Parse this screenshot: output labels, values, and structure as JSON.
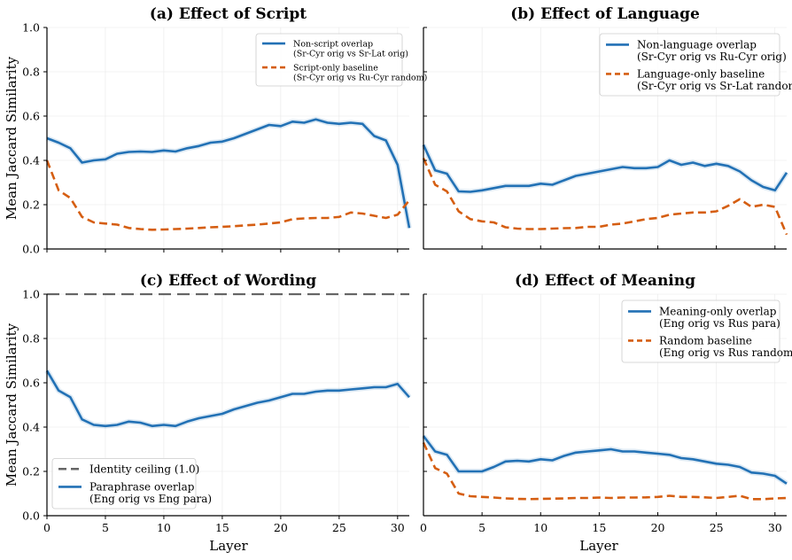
{
  "figure": {
    "shared_ylabel": "Mean Jaccard Similarity",
    "shared_xlabel": "Layer"
  },
  "chart_data": [
    {
      "type": "line",
      "title": "(a)  Effect of Script",
      "xlim": [
        0,
        31
      ],
      "ylim": [
        0,
        1
      ],
      "xticks": [
        0,
        5,
        10,
        15,
        20,
        25,
        30
      ],
      "yticks": [
        0.0,
        0.2,
        0.4,
        0.6,
        0.8,
        1.0
      ],
      "ytick_labels": [
        "0.0",
        "0.2",
        "0.4",
        "0.6",
        "0.8",
        "1.0"
      ],
      "show_xtick_labels": false,
      "show_ytick_labels": true,
      "legend_position": "top-right",
      "legend_font_size": "small",
      "series": [
        {
          "name": "Non-script overlap",
          "name_line2": "(Sr-Cyr orig vs Sr-Lat orig)",
          "color": "#2271b5",
          "style": "solid",
          "x": [
            0,
            1,
            2,
            3,
            4,
            5,
            6,
            7,
            8,
            9,
            10,
            11,
            12,
            13,
            14,
            15,
            16,
            17,
            18,
            19,
            20,
            21,
            22,
            23,
            24,
            25,
            26,
            27,
            28,
            29,
            30,
            31
          ],
          "y": [
            0.5,
            0.48,
            0.455,
            0.39,
            0.4,
            0.405,
            0.43,
            0.438,
            0.44,
            0.438,
            0.445,
            0.44,
            0.455,
            0.465,
            0.48,
            0.485,
            0.5,
            0.52,
            0.54,
            0.56,
            0.555,
            0.575,
            0.57,
            0.585,
            0.57,
            0.565,
            0.57,
            0.565,
            0.51,
            0.49,
            0.38,
            0.095
          ]
        },
        {
          "name": "Script-only baseline",
          "name_line2": "(Sr-Cyr orig vs Ru-Cyr random)",
          "color": "#d55e12",
          "style": "dashed",
          "x": [
            0,
            1,
            2,
            3,
            4,
            5,
            6,
            7,
            8,
            9,
            10,
            11,
            12,
            13,
            14,
            15,
            16,
            17,
            18,
            19,
            20,
            21,
            22,
            23,
            24,
            25,
            26,
            27,
            28,
            29,
            30,
            31
          ],
          "y": [
            0.4,
            0.265,
            0.23,
            0.145,
            0.12,
            0.115,
            0.11,
            0.095,
            0.09,
            0.087,
            0.088,
            0.09,
            0.092,
            0.095,
            0.098,
            0.1,
            0.103,
            0.107,
            0.11,
            0.115,
            0.12,
            0.135,
            0.138,
            0.14,
            0.14,
            0.145,
            0.165,
            0.16,
            0.15,
            0.14,
            0.155,
            0.22
          ]
        }
      ]
    },
    {
      "type": "line",
      "title": "(b)  Effect of Language",
      "xlim": [
        0,
        31
      ],
      "ylim": [
        0,
        1
      ],
      "xticks": [
        0,
        5,
        10,
        15,
        20,
        25,
        30
      ],
      "yticks": [
        0.0,
        0.2,
        0.4,
        0.6,
        0.8,
        1.0
      ],
      "show_xtick_labels": false,
      "show_ytick_labels": false,
      "legend_position": "top-right",
      "legend_font_size": "large",
      "series": [
        {
          "name": "Non-language overlap",
          "name_line2": "(Sr-Cyr orig vs Ru-Cyr orig)",
          "color": "#2271b5",
          "style": "solid",
          "x": [
            0,
            1,
            2,
            3,
            4,
            5,
            6,
            7,
            8,
            9,
            10,
            11,
            12,
            13,
            14,
            15,
            16,
            17,
            18,
            19,
            20,
            21,
            22,
            23,
            24,
            25,
            26,
            27,
            28,
            29,
            30,
            31
          ],
          "y": [
            0.47,
            0.355,
            0.34,
            0.26,
            0.258,
            0.265,
            0.275,
            0.285,
            0.285,
            0.285,
            0.295,
            0.29,
            0.31,
            0.33,
            0.34,
            0.35,
            0.36,
            0.37,
            0.365,
            0.365,
            0.37,
            0.4,
            0.38,
            0.39,
            0.375,
            0.385,
            0.375,
            0.35,
            0.31,
            0.28,
            0.265,
            0.345
          ]
        },
        {
          "name": "Language-only baseline",
          "name_line2": "(Sr-Cyr orig vs Sr-Lat random)",
          "color": "#d55e12",
          "style": "dashed",
          "x": [
            0,
            1,
            2,
            3,
            4,
            5,
            6,
            7,
            8,
            9,
            10,
            11,
            12,
            13,
            14,
            15,
            16,
            17,
            18,
            19,
            20,
            21,
            22,
            23,
            24,
            25,
            26,
            27,
            28,
            29,
            30,
            31
          ],
          "y": [
            0.41,
            0.29,
            0.26,
            0.17,
            0.135,
            0.125,
            0.12,
            0.098,
            0.092,
            0.09,
            0.09,
            0.092,
            0.094,
            0.095,
            0.1,
            0.1,
            0.11,
            0.115,
            0.125,
            0.135,
            0.14,
            0.155,
            0.16,
            0.165,
            0.165,
            0.17,
            0.195,
            0.225,
            0.19,
            0.2,
            0.19,
            0.065
          ]
        }
      ]
    },
    {
      "type": "line",
      "title": "(c)  Effect of Wording",
      "xlim": [
        0,
        31
      ],
      "ylim": [
        0,
        1
      ],
      "xticks": [
        0,
        5,
        10,
        15,
        20,
        25,
        30
      ],
      "xtick_labels": [
        "0",
        "5",
        "10",
        "15",
        "20",
        "25",
        "30"
      ],
      "yticks": [
        0.0,
        0.2,
        0.4,
        0.6,
        0.8,
        1.0
      ],
      "ytick_labels": [
        "0.0",
        "0.2",
        "0.4",
        "0.6",
        "0.8",
        "1.0"
      ],
      "show_xtick_labels": true,
      "show_ytick_labels": true,
      "legend_position": "bottom-left",
      "legend_font_size": "large",
      "reference_line": {
        "name": "Identity ceiling (1.0)",
        "y": 1.0,
        "color": "#666666",
        "style": "dashed"
      },
      "series": [
        {
          "name": "Paraphrase overlap",
          "name_line2": "(Eng orig vs Eng para)",
          "color": "#2271b5",
          "style": "solid",
          "x": [
            0,
            1,
            2,
            3,
            4,
            5,
            6,
            7,
            8,
            9,
            10,
            11,
            12,
            13,
            14,
            15,
            16,
            17,
            18,
            19,
            20,
            21,
            22,
            23,
            24,
            25,
            26,
            27,
            28,
            29,
            30,
            31
          ],
          "y": [
            0.655,
            0.565,
            0.535,
            0.435,
            0.41,
            0.405,
            0.41,
            0.425,
            0.42,
            0.405,
            0.41,
            0.405,
            0.425,
            0.44,
            0.45,
            0.46,
            0.48,
            0.495,
            0.51,
            0.52,
            0.535,
            0.55,
            0.55,
            0.56,
            0.565,
            0.565,
            0.57,
            0.575,
            0.58,
            0.58,
            0.595,
            0.535
          ]
        }
      ]
    },
    {
      "type": "line",
      "title": "(d)  Effect of Meaning",
      "xlim": [
        0,
        31
      ],
      "ylim": [
        0,
        1
      ],
      "xticks": [
        0,
        5,
        10,
        15,
        20,
        25,
        30
      ],
      "xtick_labels": [
        "0",
        "5",
        "10",
        "15",
        "20",
        "25",
        "30"
      ],
      "yticks": [
        0.0,
        0.2,
        0.4,
        0.6,
        0.8,
        1.0
      ],
      "show_xtick_labels": true,
      "show_ytick_labels": false,
      "legend_position": "top-right",
      "legend_font_size": "large",
      "series": [
        {
          "name": "Meaning-only overlap",
          "name_line2": "(Eng orig vs Rus para)",
          "color": "#2271b5",
          "style": "solid",
          "x": [
            0,
            1,
            2,
            3,
            4,
            5,
            6,
            7,
            8,
            9,
            10,
            11,
            12,
            13,
            14,
            15,
            16,
            17,
            18,
            19,
            20,
            21,
            22,
            23,
            24,
            25,
            26,
            27,
            28,
            29,
            30,
            31
          ],
          "y": [
            0.36,
            0.29,
            0.275,
            0.2,
            0.2,
            0.2,
            0.22,
            0.245,
            0.248,
            0.245,
            0.255,
            0.25,
            0.27,
            0.285,
            0.29,
            0.295,
            0.3,
            0.29,
            0.29,
            0.285,
            0.28,
            0.275,
            0.26,
            0.255,
            0.245,
            0.235,
            0.23,
            0.22,
            0.195,
            0.19,
            0.18,
            0.145
          ]
        },
        {
          "name": "Random baseline",
          "name_line2": "(Eng orig vs Rus random)",
          "color": "#d55e12",
          "style": "dashed",
          "x": [
            0,
            1,
            2,
            3,
            4,
            5,
            6,
            7,
            8,
            9,
            10,
            11,
            12,
            13,
            14,
            15,
            16,
            17,
            18,
            19,
            20,
            21,
            22,
            23,
            24,
            25,
            26,
            27,
            28,
            29,
            30,
            31
          ],
          "y": [
            0.33,
            0.215,
            0.19,
            0.1,
            0.088,
            0.085,
            0.082,
            0.078,
            0.076,
            0.075,
            0.076,
            0.077,
            0.078,
            0.08,
            0.08,
            0.082,
            0.08,
            0.082,
            0.082,
            0.083,
            0.085,
            0.09,
            0.085,
            0.085,
            0.083,
            0.08,
            0.085,
            0.09,
            0.075,
            0.075,
            0.078,
            0.08
          ]
        }
      ]
    }
  ]
}
